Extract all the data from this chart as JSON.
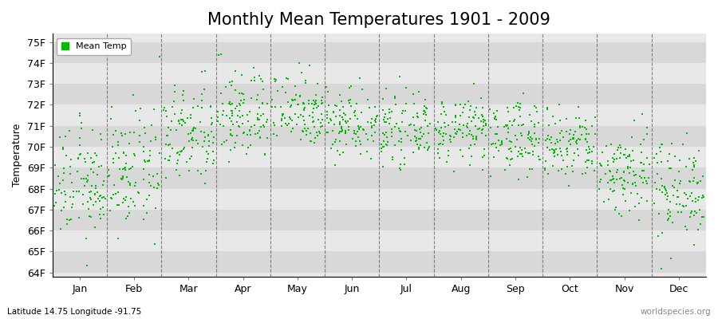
{
  "title": "Monthly Mean Temperatures 1901 - 2009",
  "ylabel": "Temperature",
  "xlabel_months": [
    "Jan",
    "Feb",
    "Mar",
    "Apr",
    "May",
    "Jun",
    "Jul",
    "Aug",
    "Sep",
    "Oct",
    "Nov",
    "Dec"
  ],
  "ytick_labels": [
    "64F",
    "65F",
    "66F",
    "67F",
    "68F",
    "69F",
    "70F",
    "71F",
    "72F",
    "73F",
    "74F",
    "75F"
  ],
  "ytick_values": [
    64,
    65,
    66,
    67,
    68,
    69,
    70,
    71,
    72,
    73,
    74,
    75
  ],
  "ylim": [
    63.8,
    75.4
  ],
  "dot_color": "#00bb00",
  "dot_size": 3,
  "background_color": "#ffffff",
  "plot_bg_color": "#ffffff",
  "band_color_light": "#e8e8e8",
  "band_color_dark": "#d8d8d8",
  "legend_label": "Mean Temp",
  "subtitle_left": "Latitude 14.75 Longitude -91.75",
  "subtitle_right": "worldspecies.org",
  "title_fontsize": 15,
  "label_fontsize": 9,
  "tick_fontsize": 9,
  "years": 109,
  "month_means": [
    68.2,
    68.8,
    70.5,
    71.5,
    71.8,
    71.2,
    70.8,
    70.8,
    70.5,
    70.0,
    68.8,
    68.0
  ],
  "month_stds": [
    1.3,
    1.4,
    1.2,
    1.1,
    0.9,
    0.85,
    0.75,
    0.75,
    0.85,
    0.9,
    1.1,
    1.2
  ]
}
